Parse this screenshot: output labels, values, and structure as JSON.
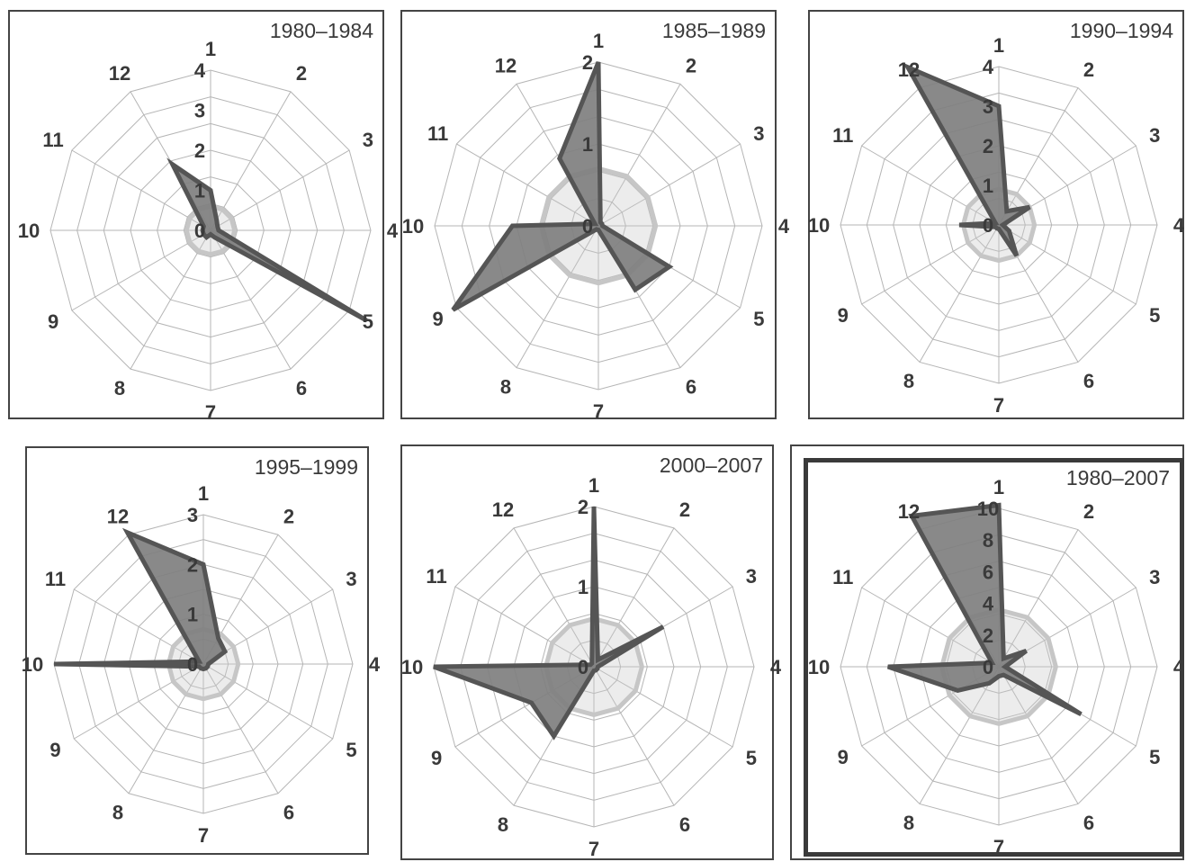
{
  "chart_data": [
    {
      "type": "radar",
      "title": "1980–1984",
      "categories": [
        "1",
        "2",
        "3",
        "4",
        "5",
        "6",
        "7",
        "8",
        "9",
        "10",
        "11",
        "12"
      ],
      "scale_labels": [
        "0",
        "1",
        "2",
        "3",
        "4"
      ],
      "rmax": 4,
      "values": [
        1,
        0.3,
        0.2,
        0.2,
        4.5,
        0.2,
        0.1,
        0.2,
        0.2,
        0.2,
        0.2,
        1.9
      ],
      "baseline": [
        0.6,
        0.6,
        0.6,
        0.6,
        0.6,
        0.6,
        0.6,
        0.6,
        0.6,
        0.6,
        0.6,
        0.6
      ]
    },
    {
      "type": "radar",
      "title": "1985–1989",
      "categories": [
        "1",
        "2",
        "3",
        "4",
        "5",
        "6",
        "7",
        "8",
        "9",
        "10",
        "11",
        "12"
      ],
      "scale_labels": [
        "0",
        "1",
        "2"
      ],
      "rmax": 2,
      "values": [
        2.0,
        0.05,
        0.05,
        0.05,
        1.0,
        0.9,
        0.05,
        0.05,
        2.05,
        1.05,
        0.05,
        0.95
      ],
      "baseline": [
        0.7,
        0.7,
        0.7,
        0.7,
        0.7,
        0.7,
        0.7,
        0.7,
        0.7,
        0.7,
        0.7,
        0.7
      ]
    },
    {
      "type": "radar",
      "title": "1990–1994",
      "categories": [
        "1",
        "2",
        "3",
        "4",
        "5",
        "6",
        "7",
        "8",
        "9",
        "10",
        "11",
        "12"
      ],
      "scale_labels": [
        "0",
        "1",
        "2",
        "3",
        "4"
      ],
      "rmax": 4,
      "values": [
        3.0,
        0.4,
        0.9,
        0.1,
        0.3,
        0.9,
        0.1,
        0.1,
        0.1,
        1.0,
        0.1,
        4.6
      ],
      "baseline": [
        0.9,
        0.9,
        0.9,
        0.9,
        0.9,
        0.9,
        0.9,
        0.9,
        0.9,
        0.9,
        0.9,
        0.9
      ]
    },
    {
      "type": "radar",
      "title": "1995–1999",
      "categories": [
        "1",
        "2",
        "3",
        "4",
        "5",
        "6",
        "7",
        "8",
        "9",
        "10",
        "11",
        "12"
      ],
      "scale_labels": [
        "0",
        "1",
        "2",
        "3"
      ],
      "rmax": 3,
      "values": [
        2.0,
        0.6,
        0.5,
        0.1,
        0.1,
        0.1,
        0.1,
        0.1,
        0.1,
        3.0,
        0.1,
        3.05
      ],
      "baseline": [
        0.7,
        0.7,
        0.7,
        0.7,
        0.7,
        0.7,
        0.7,
        0.7,
        0.7,
        0.7,
        0.7,
        0.7
      ]
    },
    {
      "type": "radar",
      "title": "2000–2007",
      "categories": [
        "1",
        "2",
        "3",
        "4",
        "5",
        "6",
        "7",
        "8",
        "9",
        "10",
        "11",
        "12"
      ],
      "scale_labels": [
        "0",
        "1",
        "2"
      ],
      "rmax": 2,
      "values": [
        2.0,
        0.1,
        1.0,
        0.05,
        0.05,
        0.05,
        0.05,
        1.0,
        0.9,
        2.0,
        0.05,
        0.05
      ],
      "baseline": [
        0.6,
        0.6,
        0.6,
        0.6,
        0.6,
        0.6,
        0.6,
        0.6,
        0.6,
        0.6,
        0.6,
        0.6
      ]
    },
    {
      "type": "radar",
      "title": "1980–2007",
      "categories": [
        "1",
        "2",
        "3",
        "4",
        "5",
        "6",
        "7",
        "8",
        "9",
        "10",
        "11",
        "12"
      ],
      "scale_labels": [
        "0",
        "2",
        "4",
        "6",
        "8",
        "10"
      ],
      "rmax": 10,
      "values": [
        10.2,
        0.6,
        2.0,
        0.4,
        6.0,
        0.6,
        0.6,
        1.2,
        3.0,
        7.0,
        0.5,
        11.0
      ],
      "baseline": [
        3.6,
        3.6,
        3.6,
        3.6,
        3.6,
        3.6,
        3.6,
        3.6,
        3.6,
        3.6,
        3.6,
        3.6
      ]
    }
  ]
}
